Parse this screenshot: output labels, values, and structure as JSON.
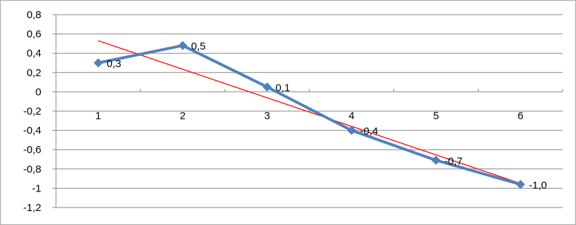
{
  "chart_data": {
    "type": "line",
    "title": "",
    "xlabel": "",
    "ylabel": "",
    "x": [
      1,
      2,
      3,
      4,
      5,
      6
    ],
    "categories": [
      "1",
      "2",
      "3",
      "4",
      "5",
      "6"
    ],
    "ylim": [
      -1.2,
      0.8
    ],
    "yticks": [
      0.8,
      0.6,
      0.4,
      0.2,
      0,
      -0.2,
      -0.4,
      -0.6,
      -0.8,
      -1,
      -1.2
    ],
    "ytick_labels": [
      "0,8",
      "0,6",
      "0,4",
      "0,2",
      "0",
      "-0,2",
      "-0,4",
      "-0,6",
      "-0,8",
      "-1",
      "-1,2"
    ],
    "grid": true,
    "legend": "none",
    "series": [
      {
        "values": [
          0.3,
          0.48,
          0.05,
          -0.4,
          -0.71,
          -0.96
        ],
        "data_labels": [
          "0,3",
          "0,5",
          "0,1",
          "-0,4",
          "-0,7",
          "-1,0"
        ],
        "color": "#4f81bd",
        "marker": "diamond"
      }
    ],
    "trendline": {
      "type": "linear",
      "start": [
        1,
        0.53
      ],
      "end": [
        6,
        -0.95
      ],
      "color": "#ff0000"
    }
  }
}
